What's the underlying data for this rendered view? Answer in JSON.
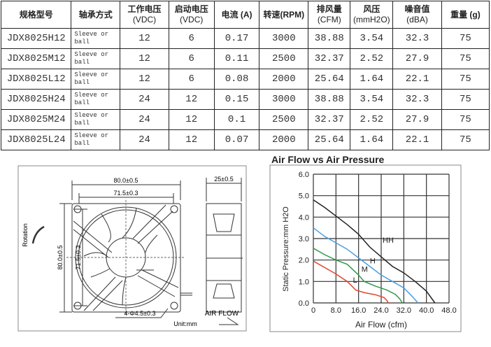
{
  "table": {
    "headers": [
      {
        "l1": "规格型号",
        "l2": ""
      },
      {
        "l1": "轴承方式",
        "l2": ""
      },
      {
        "l1": "工作电压",
        "l2": "(VDC)"
      },
      {
        "l1": "启动电压",
        "l2": "(VDC)"
      },
      {
        "l1": "电流 (A)",
        "l2": ""
      },
      {
        "l1": "转速(RPM)",
        "l2": ""
      },
      {
        "l1": "排风量",
        "l2": "(CFM)"
      },
      {
        "l1": "风压",
        "l2": "(mmH2O)"
      },
      {
        "l1": "噪音值",
        "l2": "(dBA)"
      },
      {
        "l1": "重量 (g)",
        "l2": ""
      }
    ],
    "rows": [
      [
        "JDX8025H12",
        "Sleeve or ball",
        "12",
        "6",
        "0.17",
        "3000",
        "38.88",
        "3.54",
        "32.3",
        "75"
      ],
      [
        "JDX8025M12",
        "Sleeve or ball",
        "12",
        "6",
        "0.11",
        "2500",
        "32.37",
        "2.52",
        "27.9",
        "75"
      ],
      [
        "JDX8025L12",
        "Sleeve or ball",
        "12",
        "6",
        "0.08",
        "2000",
        "25.64",
        "1.64",
        "22.1",
        "75"
      ],
      [
        "JDX8025H24",
        "Sleeve or ball",
        "24",
        "12",
        "0.15",
        "3000",
        "38.88",
        "3.54",
        "32.3",
        "75"
      ],
      [
        "JDX8025M24",
        "Sleeve or ball",
        "24",
        "12",
        "0.1",
        "2500",
        "32.37",
        "2.52",
        "27.9",
        "75"
      ],
      [
        "JDX8025L24",
        "Sleeve or ball",
        "24",
        "12",
        "0.07",
        "2000",
        "25.64",
        "1.64",
        "22.1",
        "75"
      ]
    ]
  },
  "drawing": {
    "width_outer": "80.0±0.5",
    "width_inner": "71.5±0.3",
    "height_outer": "80.0±0.5",
    "height_inner": "71.5±0.3",
    "depth": "25±0.5",
    "holes": "4-Φ4.5±0.3",
    "rotation": "Rotation",
    "airflow": "AIR FLOW",
    "unit": "Unit:mm"
  },
  "chart_data": {
    "type": "line",
    "title": "Air Flow vs Air Pressure",
    "xlabel": "Air Flow (cfm)",
    "ylabel": "Static Pressure:mm H2O",
    "xlim": [
      0,
      48
    ],
    "ylim": [
      0,
      6
    ],
    "xticks": [
      "0",
      "8.0",
      "16.0",
      "24.0",
      "32.0",
      "40.0",
      "48.0"
    ],
    "yticks": [
      "0.0",
      "1.0",
      "2.0",
      "3.0",
      "4.0",
      "5.0",
      "6.0"
    ],
    "grid": true,
    "series": [
      {
        "name": "HH",
        "color": "#222222",
        "points": [
          [
            0,
            4.8
          ],
          [
            4,
            4.45
          ],
          [
            8,
            4.05
          ],
          [
            12,
            3.65
          ],
          [
            16,
            3.2
          ],
          [
            20,
            2.6
          ],
          [
            24,
            2.15
          ],
          [
            28,
            1.7
          ],
          [
            32,
            1.4
          ],
          [
            36,
            1.0
          ],
          [
            40,
            0.55
          ],
          [
            43,
            0
          ]
        ]
      },
      {
        "name": "H",
        "color": "#4a9ee0",
        "points": [
          [
            0,
            3.5
          ],
          [
            4,
            3.1
          ],
          [
            8,
            2.8
          ],
          [
            12,
            2.5
          ],
          [
            16,
            2.1
          ],
          [
            20,
            1.7
          ],
          [
            24,
            1.3
          ],
          [
            28,
            1.0
          ],
          [
            32,
            0.7
          ],
          [
            35,
            0.3
          ],
          [
            37,
            0
          ]
        ]
      },
      {
        "name": "M",
        "color": "#2e9a4a",
        "points": [
          [
            0,
            2.55
          ],
          [
            4,
            2.25
          ],
          [
            8,
            2.0
          ],
          [
            12,
            1.8
          ],
          [
            16,
            1.3
          ],
          [
            18,
            1.0
          ],
          [
            22,
            0.78
          ],
          [
            26,
            0.6
          ],
          [
            29,
            0.4
          ],
          [
            30.5,
            0.2
          ],
          [
            31.5,
            0
          ]
        ]
      },
      {
        "name": "L",
        "color": "#e2462e",
        "points": [
          [
            0,
            1.95
          ],
          [
            4,
            1.65
          ],
          [
            8,
            1.35
          ],
          [
            12,
            1.0
          ],
          [
            15,
            0.6
          ],
          [
            18,
            0.48
          ],
          [
            22,
            0.38
          ],
          [
            25,
            0.25
          ],
          [
            26,
            0.12
          ],
          [
            26.5,
            0
          ]
        ]
      }
    ],
    "labels": [
      {
        "text": "HH",
        "x": 24.5,
        "y": 2.8
      },
      {
        "text": "H",
        "x": 20,
        "y": 1.85
      },
      {
        "text": "M",
        "x": 17,
        "y": 1.45
      },
      {
        "text": "L",
        "x": 14,
        "y": 0.95
      }
    ]
  }
}
